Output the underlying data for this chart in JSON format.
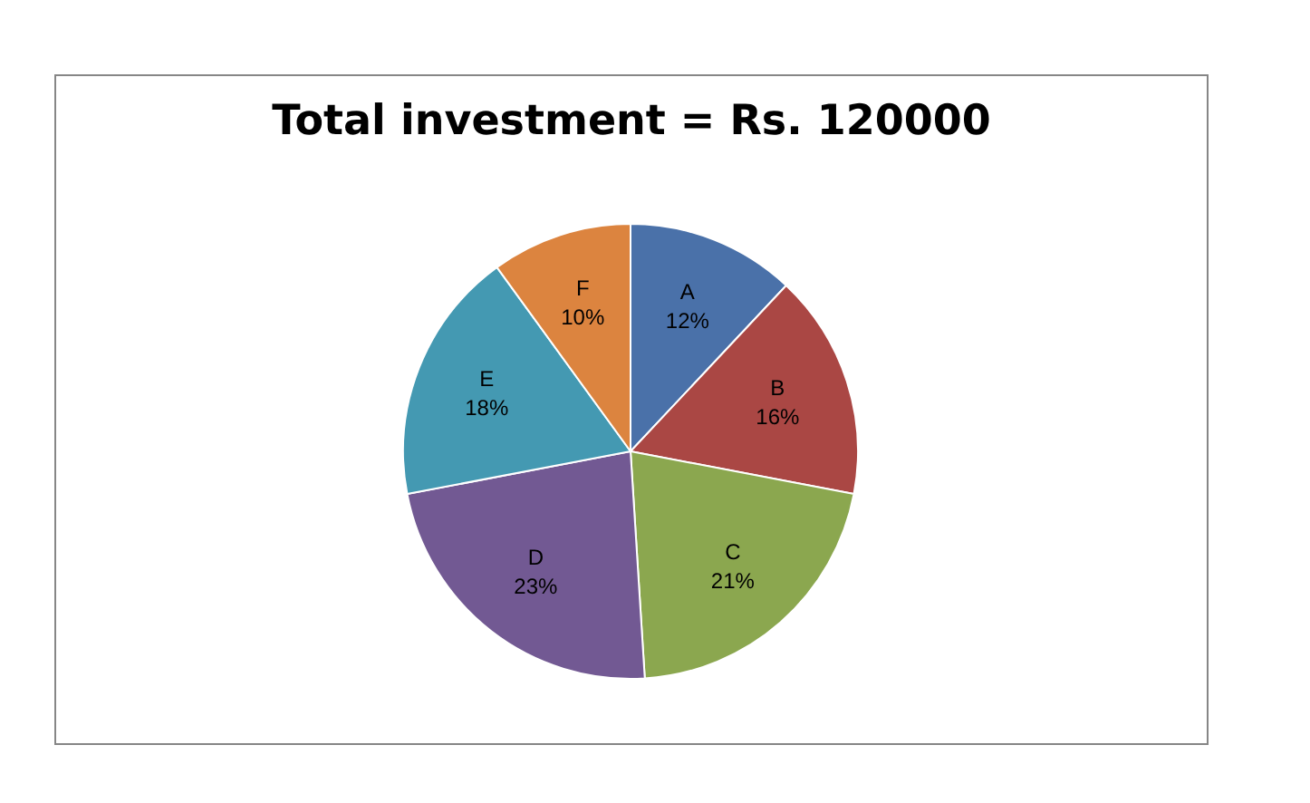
{
  "chart_data": {
    "type": "pie",
    "title": "Total investment = Rs. 120000",
    "categories": [
      "A",
      "B",
      "C",
      "D",
      "E",
      "F"
    ],
    "values": [
      12,
      16,
      21,
      23,
      18,
      10
    ],
    "value_labels": [
      "12%",
      "16%",
      "21%",
      "23%",
      "18%",
      "10%"
    ],
    "colors": [
      "#4a71a9",
      "#aa4744",
      "#8ba74f",
      "#725993",
      "#4499b2",
      "#dc843f"
    ],
    "legend": false
  }
}
